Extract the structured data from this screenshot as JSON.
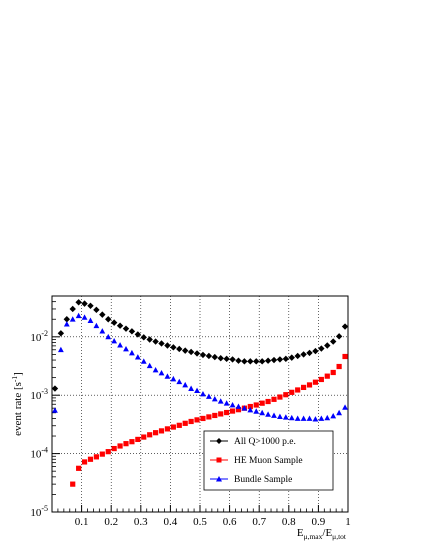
{
  "chart_data": {
    "type": "scatter",
    "title": "",
    "xlabel": "E_{μ,max}/E_{μ,tot}",
    "xlabel_parts": {
      "base": "E",
      "sub1": "μ,max",
      "sep": "/E",
      "sub2": "μ,tot"
    },
    "ylabel": "event rate [s^{-1}]",
    "ylabel_parts": {
      "base": "event rate [s",
      "sup": "-1",
      "close": "]"
    },
    "xlim": [
      0.0,
      1.0
    ],
    "ylim": [
      1e-05,
      0.05
    ],
    "yscale": "log",
    "grid": true,
    "legend_position": "bottom-right",
    "x_ticks": [
      {
        "value": 0.1,
        "label": "0.1"
      },
      {
        "value": 0.2,
        "label": "0.2"
      },
      {
        "value": 0.3,
        "label": "0.3"
      },
      {
        "value": 0.4,
        "label": "0.4"
      },
      {
        "value": 0.5,
        "label": "0.5"
      },
      {
        "value": 0.6,
        "label": "0.6"
      },
      {
        "value": 0.7,
        "label": "0.7"
      },
      {
        "value": 0.8,
        "label": "0.8"
      },
      {
        "value": 0.9,
        "label": "0.9"
      },
      {
        "value": 1.0,
        "label": "1"
      }
    ],
    "y_ticks": [
      {
        "exp": -5,
        "base": "10",
        "sup": "-5"
      },
      {
        "exp": -4,
        "base": "10",
        "sup": "-4"
      },
      {
        "exp": -3,
        "base": "10",
        "sup": "-3"
      },
      {
        "exp": -2,
        "base": "10",
        "sup": "-2"
      }
    ],
    "series": [
      {
        "name": "All Q>1000 p.e.",
        "color": "#000000",
        "marker": "diamond",
        "x": [
          0.01,
          0.03,
          0.05,
          0.07,
          0.09,
          0.11,
          0.13,
          0.15,
          0.17,
          0.19,
          0.21,
          0.23,
          0.25,
          0.27,
          0.29,
          0.31,
          0.33,
          0.35,
          0.37,
          0.39,
          0.41,
          0.43,
          0.45,
          0.47,
          0.49,
          0.51,
          0.53,
          0.55,
          0.57,
          0.59,
          0.61,
          0.63,
          0.65,
          0.67,
          0.69,
          0.71,
          0.73,
          0.75,
          0.77,
          0.79,
          0.81,
          0.83,
          0.85,
          0.87,
          0.89,
          0.91,
          0.93,
          0.95,
          0.97,
          0.99
        ],
        "y": [
          0.0013,
          0.0115,
          0.02,
          0.03,
          0.039,
          0.037,
          0.034,
          0.029,
          0.024,
          0.02,
          0.0175,
          0.0155,
          0.0138,
          0.0124,
          0.011,
          0.0098,
          0.009,
          0.0083,
          0.0077,
          0.0071,
          0.0066,
          0.0062,
          0.0058,
          0.0055,
          0.0052,
          0.0049,
          0.0047,
          0.0045,
          0.0043,
          0.0042,
          0.0041,
          0.0039,
          0.0038,
          0.0038,
          0.0038,
          0.0038,
          0.0039,
          0.004,
          0.0041,
          0.0042,
          0.0044,
          0.0047,
          0.005,
          0.0053,
          0.0057,
          0.0063,
          0.0071,
          0.0083,
          0.0102,
          0.015
        ]
      },
      {
        "name": "HE Muon Sample",
        "color": "#ff0000",
        "marker": "square",
        "x": [
          0.07,
          0.09,
          0.11,
          0.13,
          0.15,
          0.17,
          0.19,
          0.21,
          0.23,
          0.25,
          0.27,
          0.29,
          0.31,
          0.33,
          0.35,
          0.37,
          0.39,
          0.41,
          0.43,
          0.45,
          0.47,
          0.49,
          0.51,
          0.53,
          0.55,
          0.57,
          0.59,
          0.61,
          0.63,
          0.65,
          0.67,
          0.69,
          0.71,
          0.73,
          0.75,
          0.77,
          0.79,
          0.81,
          0.83,
          0.85,
          0.87,
          0.89,
          0.91,
          0.93,
          0.95,
          0.97,
          0.99
        ],
        "y": [
          3e-05,
          5.6e-05,
          7.2e-05,
          8e-05,
          8.8e-05,
          9.8e-05,
          0.000108,
          0.000122,
          0.000135,
          0.000148,
          0.00016,
          0.000175,
          0.000192,
          0.00021,
          0.000228,
          0.000245,
          0.000265,
          0.000285,
          0.000305,
          0.00033,
          0.000355,
          0.000378,
          0.0004,
          0.000425,
          0.00045,
          0.000478,
          0.000505,
          0.000535,
          0.000565,
          0.0006,
          0.00064,
          0.00068,
          0.00073,
          0.00078,
          0.00085,
          0.00093,
          0.00102,
          0.00112,
          0.00123,
          0.00136,
          0.0015,
          0.00167,
          0.00186,
          0.00212,
          0.00245,
          0.0031,
          0.0046
        ]
      },
      {
        "name": "Bundle Sample",
        "color": "#0000ff",
        "marker": "triangle",
        "x": [
          0.01,
          0.03,
          0.05,
          0.07,
          0.09,
          0.11,
          0.13,
          0.15,
          0.17,
          0.19,
          0.21,
          0.23,
          0.25,
          0.27,
          0.29,
          0.31,
          0.33,
          0.35,
          0.37,
          0.39,
          0.41,
          0.43,
          0.45,
          0.47,
          0.49,
          0.51,
          0.53,
          0.55,
          0.57,
          0.59,
          0.61,
          0.63,
          0.65,
          0.67,
          0.69,
          0.71,
          0.73,
          0.75,
          0.77,
          0.79,
          0.81,
          0.83,
          0.85,
          0.87,
          0.89,
          0.91,
          0.93,
          0.95,
          0.97,
          0.99
        ],
        "y": [
          0.00055,
          0.006,
          0.0165,
          0.02,
          0.023,
          0.0215,
          0.019,
          0.0155,
          0.0125,
          0.01,
          0.0085,
          0.0072,
          0.0062,
          0.0053,
          0.0045,
          0.0038,
          0.0032,
          0.0027,
          0.0024,
          0.0021,
          0.0019,
          0.0017,
          0.0015,
          0.0013,
          0.0012,
          0.00105,
          0.00095,
          0.00086,
          0.00079,
          0.00073,
          0.00068,
          0.00064,
          0.0006,
          0.00056,
          0.00053,
          0.0005,
          0.00047,
          0.00045,
          0.00043,
          0.00042,
          0.00041,
          0.0004,
          0.0004,
          0.0004,
          0.00039,
          0.0004,
          0.00041,
          0.00044,
          0.0005,
          0.00062
        ]
      }
    ]
  }
}
